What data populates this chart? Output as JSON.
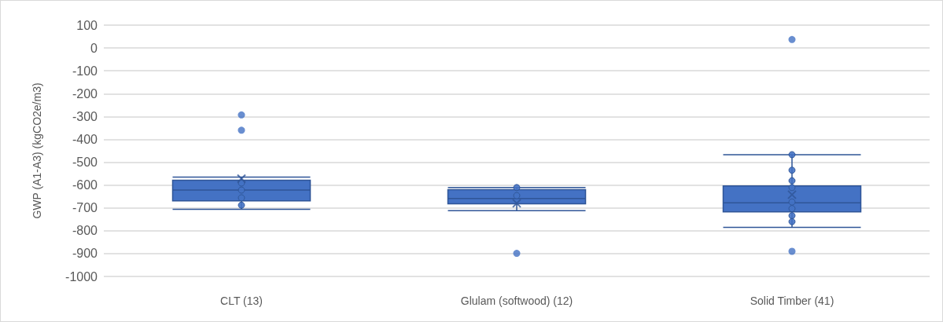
{
  "chart_data": {
    "type": "box",
    "ylabel": "GWP (A1-A3) (kgCO2e/m3)",
    "categories": [
      "CLT (13)",
      "Glulam (softwood) (12)",
      "Solid Timber (41)"
    ],
    "color": "#4472c4",
    "boxes": [
      {
        "low": -706,
        "q1": -669,
        "median": -622,
        "q3": -579,
        "high": -565,
        "mean": -572,
        "outliers": [
          -293,
          -360
        ]
      },
      {
        "low": -712,
        "q1": -682,
        "median": -659,
        "q3": -620,
        "high": -611,
        "mean": -680,
        "outliers": [
          -899
        ]
      },
      {
        "low": -785,
        "q1": -717,
        "median": -678,
        "q3": -604,
        "high": -467,
        "mean": -642,
        "outliers": [
          37,
          -890
        ]
      }
    ],
    "series": [
      {
        "type": "scatter",
        "color": "#4472c4",
        "x": [
          "CLT (13)",
          "CLT (13)",
          "CLT (13)",
          "CLT (13)",
          "Glulam (softwood) (12)",
          "Glulam (softwood) (12)",
          "Solid Timber (41)",
          "Solid Timber (41)",
          "Solid Timber (41)",
          "Solid Timber (41)",
          "Solid Timber (41)",
          "Solid Timber (41)",
          "Solid Timber (41)",
          "Solid Timber (41)"
        ],
        "values": [
          -591,
          -622,
          -656,
          -688,
          -611,
          -646,
          -467,
          -535,
          -581,
          -611,
          -674,
          -703,
          -734,
          -760
        ]
      }
    ],
    "marker": "circle",
    "ylim": [
      -1000,
      100
    ],
    "yticks": [
      -1000,
      -900,
      -800,
      -700,
      -600,
      -500,
      -400,
      -300,
      -200,
      -100,
      0,
      100
    ],
    "grid": "y"
  }
}
